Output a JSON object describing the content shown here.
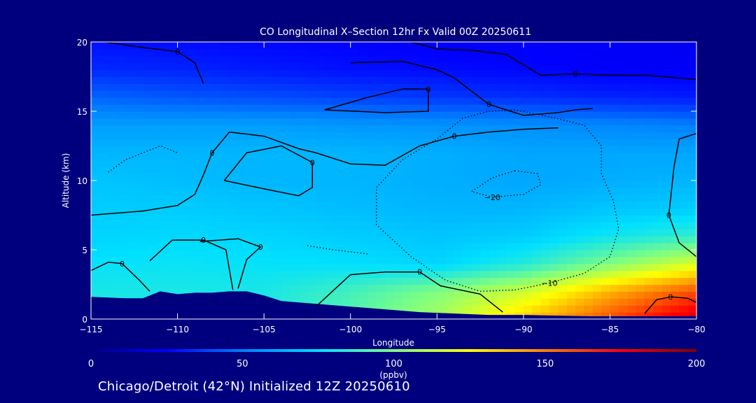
{
  "chart_data": {
    "type": "heatmap",
    "title": "CO Longitudinal X–Section 12hr  Fx Valid 00Z 20250611",
    "xlabel": "Longitude",
    "ylabel": "Altitude (km)",
    "xlim": [
      -115,
      -80
    ],
    "ylim": [
      0,
      20
    ],
    "xticks": [
      -115,
      -110,
      -105,
      -100,
      -95,
      -90,
      -85,
      -80
    ],
    "xtick_labels": [
      "−115",
      "−110",
      "−105",
      "−100",
      "−95",
      "−90",
      "−85",
      "−80"
    ],
    "yticks": [
      0,
      5,
      10,
      15,
      20
    ],
    "ytick_labels": [
      "0",
      "5",
      "10",
      "15",
      "20"
    ],
    "colorbar": {
      "label": "(ppbv)",
      "range": [
        0,
        200
      ],
      "ticks": [
        0,
        50,
        100,
        150,
        200
      ],
      "tick_labels": [
        "0",
        "50",
        "100",
        "150",
        "200"
      ],
      "colors": [
        "#00007f",
        "#0000ff",
        "#0080ff",
        "#00e0ff",
        "#80ff80",
        "#ffff00",
        "#ff8000",
        "#ff0000",
        "#7f0000"
      ]
    },
    "field_grid": {
      "lon": [
        -115,
        -110,
        -105,
        -100,
        -95,
        -90,
        -85,
        -80
      ],
      "alt": [
        0,
        2,
        4,
        6,
        8,
        10,
        12,
        14,
        16,
        18,
        20
      ],
      "values": [
        [
          78,
          80,
          80,
          92,
          108,
          135,
          160,
          185
        ],
        [
          80,
          80,
          80,
          88,
          100,
          115,
          140,
          160
        ],
        [
          76,
          77,
          76,
          75,
          72,
          82,
          100,
          118
        ],
        [
          72,
          73,
          72,
          70,
          68,
          70,
          78,
          85
        ],
        [
          70,
          70,
          68,
          66,
          64,
          64,
          68,
          70
        ],
        [
          68,
          66,
          64,
          64,
          62,
          60,
          62,
          64
        ],
        [
          64,
          64,
          64,
          64,
          62,
          60,
          60,
          60
        ],
        [
          58,
          58,
          58,
          56,
          55,
          54,
          52,
          50
        ],
        [
          45,
          42,
          40,
          38,
          36,
          34,
          32,
          30
        ],
        [
          33,
          32,
          30,
          28,
          27,
          26,
          24,
          24
        ],
        [
          28,
          27,
          26,
          25,
          24,
          24,
          24,
          22
        ]
      ]
    },
    "terrain_km": {
      "lon": [
        -115,
        -113,
        -112,
        -111,
        -110,
        -109,
        -108,
        -107,
        -106,
        -105,
        -104,
        -102,
        -100,
        -98,
        -96,
        -94,
        -92,
        -90,
        -88,
        -86,
        -84,
        -82,
        -80
      ],
      "alt": [
        1.6,
        1.5,
        1.5,
        2.0,
        1.8,
        1.9,
        1.9,
        2.0,
        2.0,
        1.7,
        1.3,
        1.1,
        0.9,
        0.7,
        0.5,
        0.4,
        0.3,
        0.3,
        0.25,
        0.2,
        0.2,
        0.2,
        0.2
      ]
    },
    "contours": [
      {
        "label": "0",
        "style": "solid",
        "lon": [
          -114.2,
          -112,
          -110,
          -109,
          -108.5
        ],
        "alt": [
          20,
          19.6,
          19.3,
          18.5,
          17.0
        ]
      },
      {
        "label": "0",
        "style": "solid",
        "lon": [
          -96.5,
          -95,
          -93,
          -91,
          -89,
          -87,
          -85,
          -83,
          -81,
          -80
        ],
        "alt": [
          20,
          19.5,
          19.4,
          19.1,
          17.6,
          17.7,
          17.6,
          17.6,
          17.4,
          17.3
        ]
      },
      {
        "label": "0",
        "style": "solid",
        "lon": [
          -101.5,
          -99,
          -97,
          -95.5,
          -95.5,
          -98,
          -101.5
        ],
        "alt": [
          15.1,
          16.0,
          16.6,
          16.6,
          15.0,
          14.9,
          15.1
        ]
      },
      {
        "label": "0",
        "style": "solid",
        "lon": [
          -100,
          -97,
          -95,
          -94,
          -92,
          -90,
          -88,
          -87,
          -86
        ],
        "alt": [
          18.5,
          18.6,
          18.0,
          17.4,
          15.5,
          14.7,
          14.9,
          15.1,
          15.2
        ]
      },
      {
        "label": "0",
        "style": "solid",
        "lon": [
          -115,
          -112,
          -110,
          -109,
          -108.5,
          -108,
          -107,
          -105,
          -103,
          -102
        ],
        "alt": [
          7.5,
          7.8,
          8.2,
          9.0,
          10.4,
          12.0,
          13.5,
          13.2,
          12.3,
          12.0
        ]
      },
      {
        "label": "0",
        "style": "solid",
        "lon": [
          -102,
          -100,
          -98,
          -96,
          -94,
          -92,
          -90,
          -88
        ],
        "alt": [
          12.0,
          11.2,
          11.1,
          12.5,
          13.2,
          13.5,
          13.7,
          13.8
        ]
      },
      {
        "label": "0",
        "style": "solid",
        "lon": [
          -107.3,
          -105,
          -103,
          -102.2,
          -102.2,
          -104,
          -106,
          -107.3
        ],
        "alt": [
          10.0,
          9.4,
          8.9,
          9.5,
          11.3,
          12.5,
          12.0,
          10.0
        ]
      },
      {
        "label": "0",
        "style": "solid",
        "lon": [
          -115,
          -114,
          -113.2,
          -112.2,
          -111.6
        ],
        "alt": [
          3.5,
          4.1,
          4.0,
          2.8,
          2.0
        ]
      },
      {
        "label": "0",
        "style": "solid",
        "lon": [
          -111.6,
          -110.3,
          -108.5,
          -107.2,
          -106.8
        ],
        "alt": [
          4.2,
          5.7,
          5.7,
          5.0,
          2.1
        ]
      },
      {
        "label": "0",
        "style": "solid",
        "lon": [
          -108.7,
          -106.5,
          -105.2,
          -106,
          -106.5
        ],
        "alt": [
          5.6,
          5.8,
          5.2,
          4.3,
          2.2
        ]
      },
      {
        "label": "0",
        "style": "solid",
        "lon": [
          -102,
          -100,
          -98,
          -96,
          -94.8,
          -92.5,
          -91.2
        ],
        "alt": [
          0.9,
          3.2,
          3.4,
          3.4,
          2.4,
          1.8,
          0.5
        ]
      },
      {
        "label": "0",
        "style": "solid",
        "lon": [
          -83,
          -82.3,
          -81.5,
          -80.5,
          -80
        ],
        "alt": [
          0.4,
          1.4,
          1.6,
          1.5,
          1.2
        ]
      },
      {
        "label": "0",
        "style": "solid",
        "lon": [
          -80,
          -81,
          -81.3,
          -81.6,
          -81,
          -80
        ],
        "alt": [
          13.4,
          13.0,
          11.0,
          7.5,
          5.5,
          4.5
        ]
      },
      {
        "label": "−10",
        "style": "dashed",
        "lon": [
          -92,
          -90.5,
          -88.5,
          -86.5,
          -85.5,
          -85.5,
          -84.8,
          -84.5,
          -85,
          -86.5,
          -88.5,
          -90.5,
          -92.5,
          -94.5,
          -96.5,
          -98.5,
          -98.5,
          -97,
          -95,
          -93.5,
          -92
        ],
        "alt": [
          15.0,
          15.1,
          14.6,
          14.0,
          12.5,
          10.5,
          8.5,
          6.5,
          4.5,
          3.3,
          2.6,
          2.1,
          2.0,
          2.8,
          4.5,
          6.8,
          9.5,
          11.5,
          13.0,
          14.5,
          15.0
        ]
      },
      {
        "label": "−20",
        "style": "dashed",
        "lon": [
          -90.5,
          -89.2,
          -89,
          -90,
          -91.8,
          -93,
          -91.8,
          -90.5
        ],
        "alt": [
          10.7,
          10.5,
          9.7,
          9.0,
          8.8,
          9.2,
          10.2,
          10.7
        ]
      },
      {
        "label": "",
        "style": "dashed",
        "lon": [
          -114,
          -113,
          -111,
          -110
        ],
        "alt": [
          10.6,
          11.5,
          12.5,
          12.0
        ]
      },
      {
        "label": "",
        "style": "dashed",
        "lon": [
          -102.5,
          -101,
          -99
        ],
        "alt": [
          5.3,
          5.0,
          4.7
        ]
      }
    ]
  },
  "footer": "Chicago/Detroit (42°N) Initialized 12Z 20250610"
}
